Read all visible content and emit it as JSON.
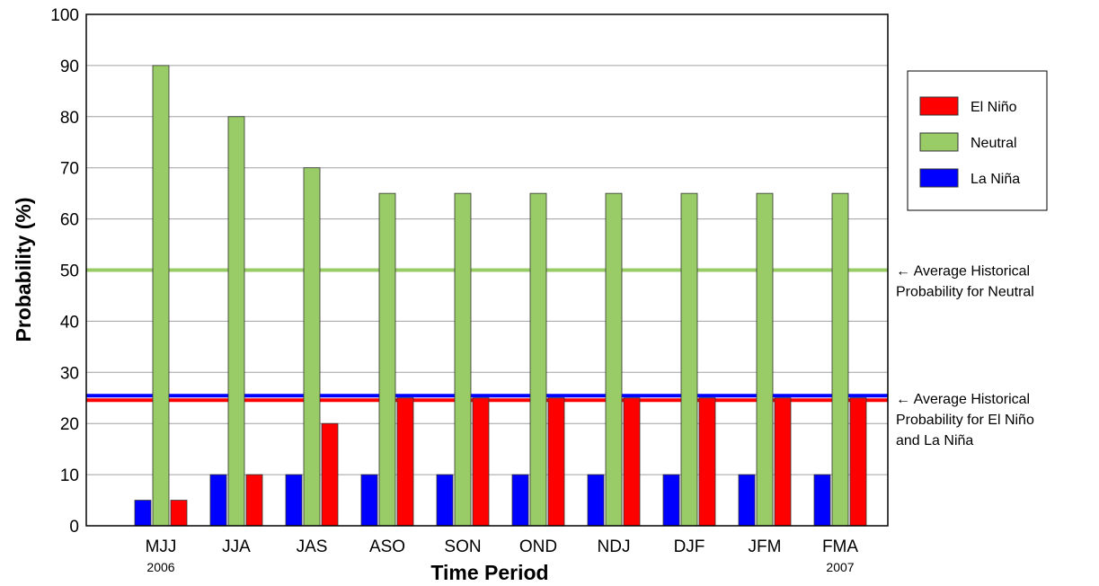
{
  "chart_data": {
    "type": "bar",
    "title": "",
    "xlabel": "Time Period",
    "ylabel": "Probability (%)",
    "ylim": [
      0,
      100
    ],
    "yticks": [
      0,
      10,
      20,
      30,
      40,
      50,
      60,
      70,
      80,
      90,
      100
    ],
    "grid": true,
    "legend_position": "right",
    "categories": [
      "MJJ",
      "JJA",
      "JAS",
      "ASO",
      "SON",
      "OND",
      "NDJ",
      "DJF",
      "JFM",
      "FMA"
    ],
    "category_sublabels": [
      "2006",
      "",
      "",
      "",
      "",
      "",
      "",
      "",
      "",
      "2007"
    ],
    "series": [
      {
        "name": "La Niña",
        "color": "#0000ff",
        "values": [
          5,
          10,
          10,
          10,
          10,
          10,
          10,
          10,
          10,
          10
        ]
      },
      {
        "name": "Neutral",
        "color": "#99cc66",
        "values": [
          90,
          80,
          70,
          65,
          65,
          65,
          65,
          65,
          65,
          65
        ]
      },
      {
        "name": "El Niño",
        "color": "#ff0000",
        "values": [
          5,
          10,
          20,
          25,
          25,
          25,
          25,
          25,
          25,
          25
        ]
      }
    ],
    "legend_order": [
      "El Niño",
      "Neutral",
      "La Niña"
    ],
    "reference_lines": [
      {
        "value": 50,
        "color": "#99cc66",
        "label_lines": [
          "← Average Historical",
          "Probability for Neutral"
        ]
      },
      {
        "value": 25,
        "colors": [
          "#0000ff",
          "#ff0000"
        ],
        "label_lines": [
          "← Average Historical",
          "Probability for El Niño",
          "and La Niña"
        ]
      }
    ]
  }
}
